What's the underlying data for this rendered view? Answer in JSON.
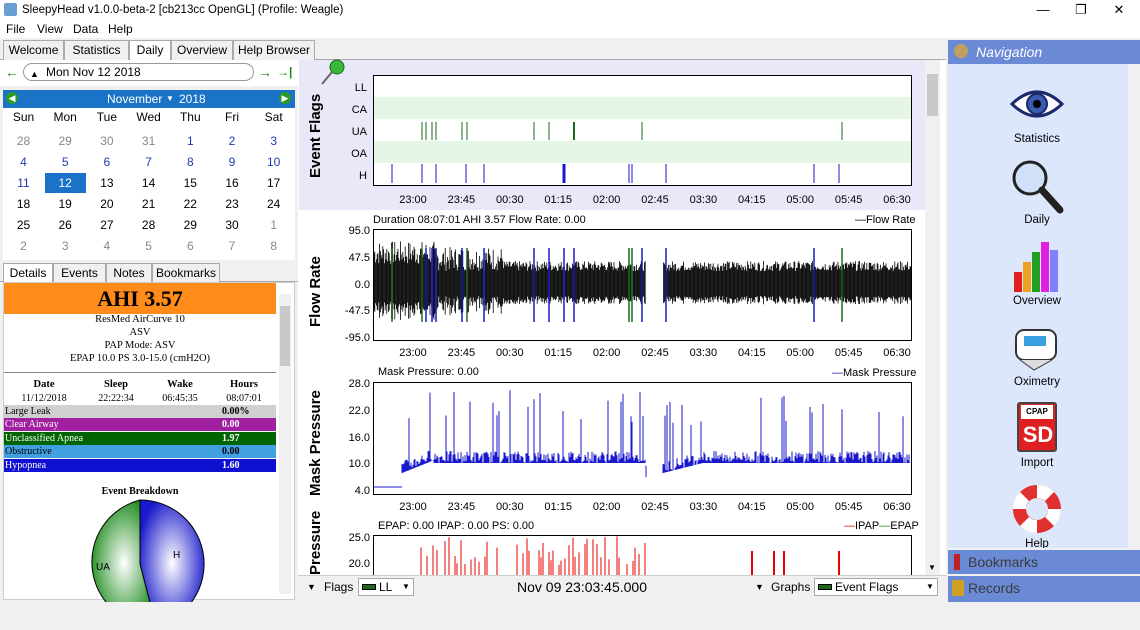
{
  "window": {
    "title": "SleepyHead v1.0.0-beta-2 [cb213cc OpenGL] (Profile: Weagle)",
    "minimize": "—",
    "maximize": "❐",
    "close": "✕"
  },
  "menu": [
    "File",
    "View",
    "Data",
    "Help"
  ],
  "tabs": [
    "Welcome",
    "Statistics",
    "Daily",
    "Overview",
    "Help Browser"
  ],
  "date_nav": {
    "date": "Mon Nov 12 2018",
    "prev": "←",
    "next": "→",
    "last": "→|"
  },
  "calendar": {
    "month": "November",
    "year": "2018",
    "dow": [
      "Sun",
      "Mon",
      "Tue",
      "Wed",
      "Thu",
      "Fri",
      "Sat"
    ],
    "weeks": [
      [
        "28",
        "29",
        "30",
        "31",
        "1",
        "2",
        "3"
      ],
      [
        "4",
        "5",
        "6",
        "7",
        "8",
        "9",
        "10"
      ],
      [
        "11",
        "12",
        "13",
        "14",
        "15",
        "16",
        "17"
      ],
      [
        "18",
        "19",
        "20",
        "21",
        "22",
        "23",
        "24"
      ],
      [
        "25",
        "26",
        "27",
        "28",
        "29",
        "30",
        "1"
      ],
      [
        "2",
        "3",
        "4",
        "5",
        "6",
        "7",
        "8"
      ]
    ]
  },
  "detail_tabs": [
    "Details",
    "Events",
    "Notes",
    "Bookmarks"
  ],
  "details": {
    "ahi": "AHI 3.57",
    "machine": "ResMed AirCurve 10",
    "model": "ASV",
    "mode": "PAP Mode: ASV",
    "pressure": "EPAP 10.0 PS 3.0-15.0 (cmH2O)",
    "session_headers": [
      "Date",
      "Sleep",
      "Wake",
      "Hours"
    ],
    "session_values": [
      "11/12/2018",
      "22:22:34",
      "06:45:35",
      "08:07:01"
    ],
    "events": [
      {
        "name": "Large Leak",
        "value": "0.00%",
        "color": "#d0d0d0",
        "text": "#000"
      },
      {
        "name": "Clear Airway",
        "value": "0.00",
        "color": "#a020a0",
        "text": "#fff"
      },
      {
        "name": "Unclassified Apnea",
        "value": "1.97",
        "color": "#006400",
        "text": "#fff"
      },
      {
        "name": "Obstructive",
        "value": "0.00",
        "color": "#40a0e0",
        "text": "#000"
      },
      {
        "name": "Hypopnea",
        "value": "1.60",
        "color": "#1010d0",
        "text": "#fff"
      }
    ],
    "breakdown_title": "Event Breakdown",
    "pie_labels": [
      "UA",
      "H"
    ]
  },
  "graphs": {
    "x_ticks": [
      "23:00",
      "23:45",
      "00:30",
      "01:15",
      "02:00",
      "02:45",
      "03:30",
      "04:15",
      "05:00",
      "05:45",
      "06:30"
    ],
    "event_flags": {
      "title": "Event Flags",
      "rows": [
        "LL",
        "CA",
        "UA",
        "OA",
        "H"
      ]
    },
    "flow_rate": {
      "title": "Flow Rate",
      "subtitle": "Duration 08:07:01 AHI 3.57 Flow Rate: 0.00",
      "legend": "Flow Rate",
      "y_ticks": [
        "95.0",
        "47.5",
        "0.0",
        "-47.5",
        "-95.0"
      ]
    },
    "mask_pressure": {
      "title": "Mask Pressure",
      "subtitle": "Mask Pressure: 0.00",
      "legend": "Mask Pressure",
      "y_ticks": [
        "28.0",
        "22.0",
        "16.0",
        "10.0",
        "4.0"
      ]
    },
    "pressure": {
      "title": "Pressure",
      "subtitle": "EPAP: 0.00 IPAP: 0.00 PS: 0.00",
      "legend_a": "IPAP",
      "legend_b": "EPAP",
      "y_ticks": [
        "25.0",
        "20.0"
      ]
    }
  },
  "bottom": {
    "flags_label": "Flags",
    "flags_value": "LL",
    "time": "Nov 09 23:03:45.000",
    "graphs_label": "Graphs",
    "graphs_value": "Event Flags"
  },
  "navigation": {
    "header": "Navigation",
    "items": [
      "Statistics",
      "Daily",
      "Overview",
      "Oximetry",
      "Import",
      "Help"
    ],
    "bookmarks": "Bookmarks",
    "records": "Records",
    "sd_top": "CPAP",
    "sd": "SD"
  },
  "colors": {
    "accent": "#1a73c7",
    "ahi": "#ff8c1a",
    "nav": "#6a8ad6"
  }
}
